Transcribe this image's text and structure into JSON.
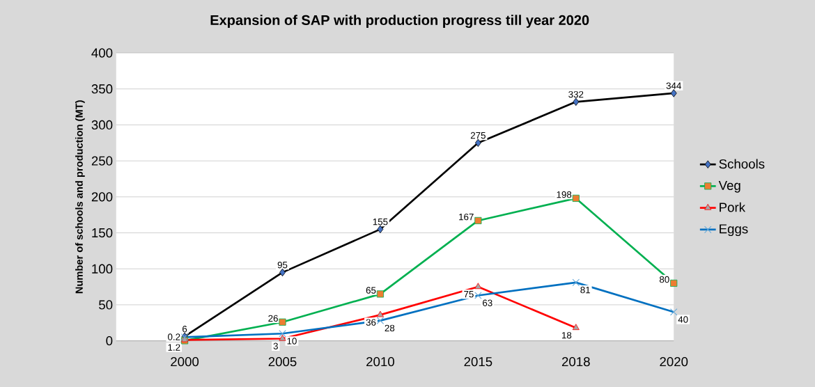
{
  "chart_data": {
    "type": "line",
    "title": "Expansion of SAP with production progress till year 2020",
    "ylabel": "Number of schools and production (MT)",
    "categories": [
      "2000",
      "2005",
      "2010",
      "2015",
      "2018",
      "2020"
    ],
    "series": [
      {
        "name": "Schools",
        "color": "#000000",
        "marker": "diamond",
        "values": [
          6,
          95,
          155,
          275,
          332,
          344
        ]
      },
      {
        "name": "Veg",
        "color": "#00b050",
        "marker": "square",
        "values": [
          0.2,
          26,
          65,
          167,
          198,
          80
        ]
      },
      {
        "name": "Pork",
        "color": "#ff0000",
        "marker": "triangle",
        "values": [
          1.2,
          3,
          36,
          75,
          18,
          null
        ]
      },
      {
        "name": "Eggs",
        "color": "#0070c0",
        "marker": "cross",
        "values": [
          5,
          10,
          28,
          63,
          81,
          40
        ],
        "value_labels": [
          null,
          "10",
          "28",
          "63",
          "81",
          "40"
        ]
      }
    ],
    "ylim": [
      0,
      400
    ],
    "yticks": [
      0,
      50,
      100,
      150,
      200,
      250,
      300,
      350,
      400
    ],
    "grid": "y",
    "legend": "right",
    "data_labels": true
  }
}
